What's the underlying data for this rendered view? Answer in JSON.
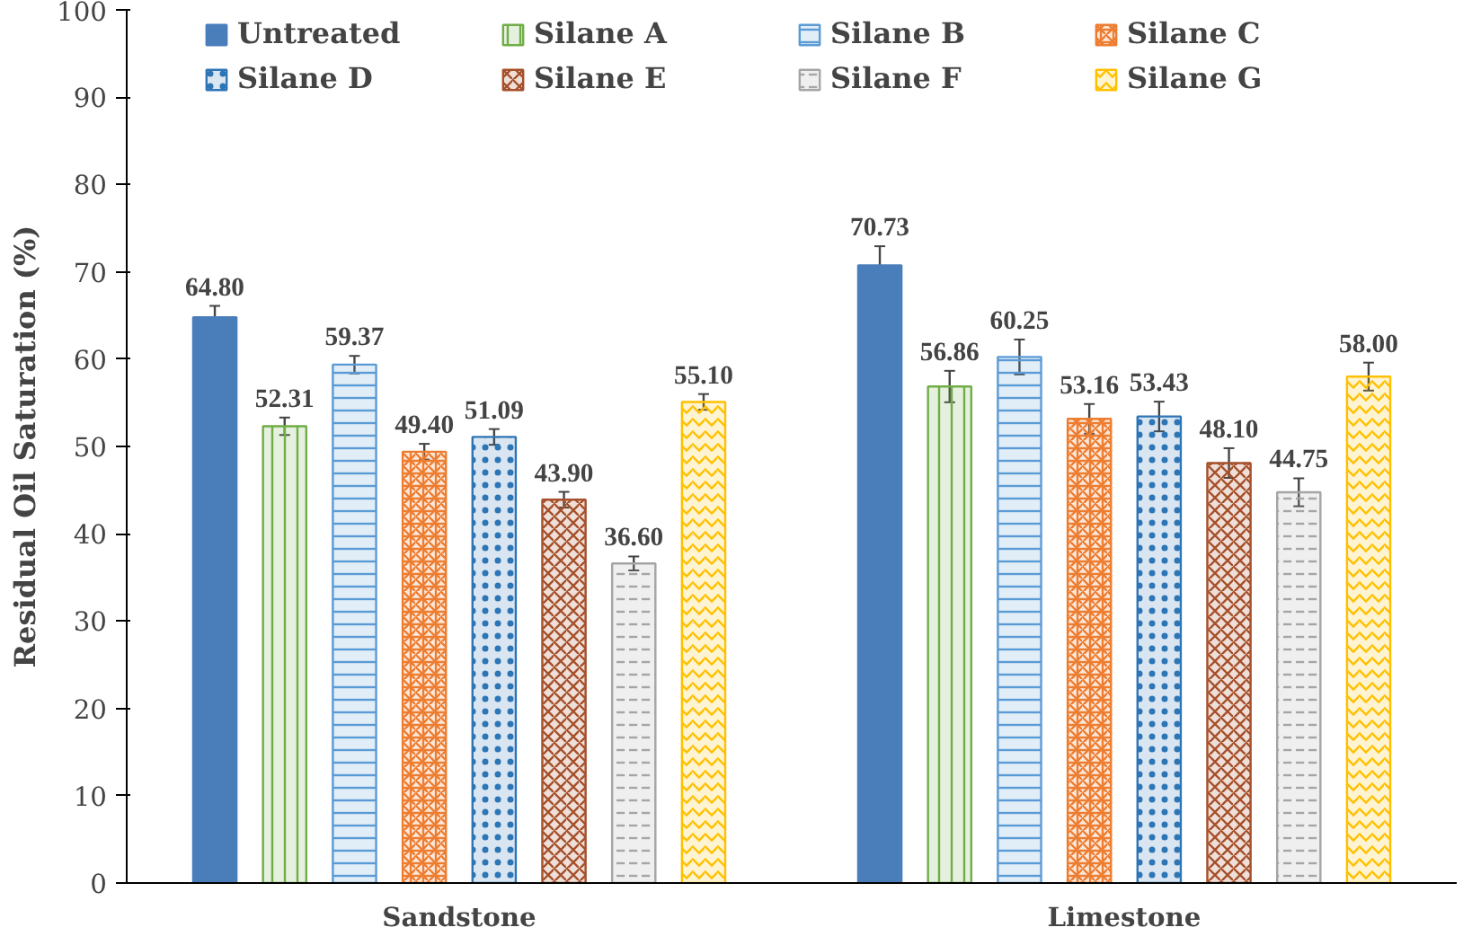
{
  "chart_data": {
    "type": "bar",
    "ylabel": "Residual Oil Saturation (%)",
    "categories": [
      "Sandstone",
      "Limestone"
    ],
    "ylim": [
      0,
      100
    ],
    "yticks": [
      0,
      10,
      20,
      30,
      40,
      50,
      60,
      70,
      80,
      90,
      100
    ],
    "grid": false,
    "legend": "top",
    "series": [
      {
        "name": "Untreated",
        "color": "#4a7ebb",
        "values": [
          64.8,
          70.73
        ],
        "errors": [
          1.3,
          2.2
        ],
        "value_labels": [
          "64.80",
          "70.73"
        ]
      },
      {
        "name": "Silane A",
        "color": "#70ad47",
        "values": [
          52.31,
          56.86
        ],
        "errors": [
          1.0,
          1.8
        ],
        "value_labels": [
          "52.31",
          "56.86"
        ]
      },
      {
        "name": "Silane B",
        "color": "#5b9bd5",
        "values": [
          59.37,
          60.25
        ],
        "errors": [
          1.0,
          2.0
        ],
        "value_labels": [
          "59.37",
          "60.25"
        ]
      },
      {
        "name": "Silane C",
        "color": "#ed7d31",
        "values": [
          49.4,
          53.16
        ],
        "errors": [
          0.9,
          1.7
        ],
        "value_labels": [
          "49.40",
          "53.16"
        ]
      },
      {
        "name": "Silane D",
        "color": "#2e75b6",
        "values": [
          51.09,
          53.43
        ],
        "errors": [
          0.9,
          1.7
        ],
        "value_labels": [
          "51.09",
          "53.43"
        ]
      },
      {
        "name": "Silane E",
        "color": "#a5502a",
        "values": [
          43.9,
          48.1
        ],
        "errors": [
          0.9,
          1.7
        ],
        "value_labels": [
          "43.90",
          "48.10"
        ]
      },
      {
        "name": "Silane F",
        "color": "#a5a5a5",
        "values": [
          36.6,
          44.75
        ],
        "errors": [
          0.8,
          1.6
        ],
        "value_labels": [
          "36.60",
          "44.75"
        ]
      },
      {
        "name": "Silane G",
        "color": "#ffc000",
        "values": [
          55.1,
          58.0
        ],
        "errors": [
          0.9,
          1.6
        ],
        "value_labels": [
          "55.10",
          "58.00"
        ]
      }
    ]
  }
}
